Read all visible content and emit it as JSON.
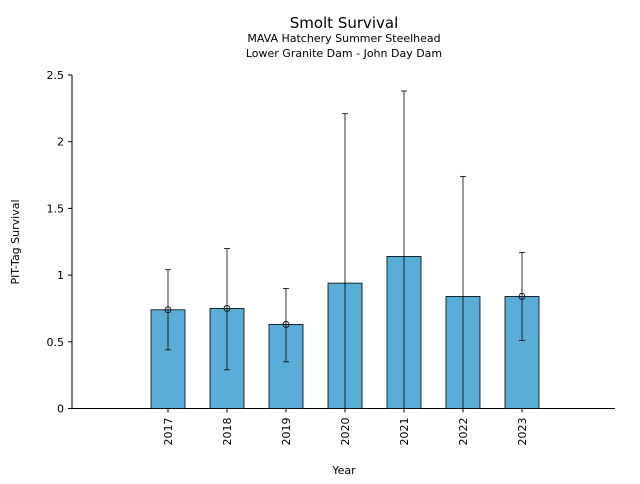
{
  "chart_data": {
    "type": "bar",
    "title": "Smolt Survival",
    "subtitle_lines": [
      "MAVA Hatchery Summer Steelhead",
      "Lower Granite Dam - John Day Dam"
    ],
    "xlabel": "Year",
    "ylabel": "PIT-Tag Survival",
    "ylim": [
      0,
      2.5
    ],
    "yticks": [
      {
        "value": 0,
        "label": "0"
      },
      {
        "value": 0.5,
        "label": "0.5"
      },
      {
        "value": 1,
        "label": "1"
      },
      {
        "value": 1.5,
        "label": "1.5"
      },
      {
        "value": 2,
        "label": "2"
      },
      {
        "value": 2.5,
        "label": "2.5"
      }
    ],
    "categories": [
      "2017",
      "2018",
      "2019",
      "2020",
      "2021",
      "2022",
      "2023"
    ],
    "values": [
      0.74,
      0.75,
      0.63,
      0.94,
      1.14,
      0.84,
      0.84
    ],
    "error_lower": [
      0.44,
      0.29,
      0.35,
      0.0,
      0.0,
      0.0,
      0.51
    ],
    "error_upper": [
      1.04,
      1.2,
      0.9,
      2.21,
      2.38,
      1.74,
      1.17
    ],
    "point_markers": [
      true,
      true,
      true,
      false,
      false,
      false,
      true
    ],
    "colors": {
      "bar_fill": "#5aadd6",
      "bar_edge": "#000000"
    },
    "grid": false,
    "legend": false
  }
}
